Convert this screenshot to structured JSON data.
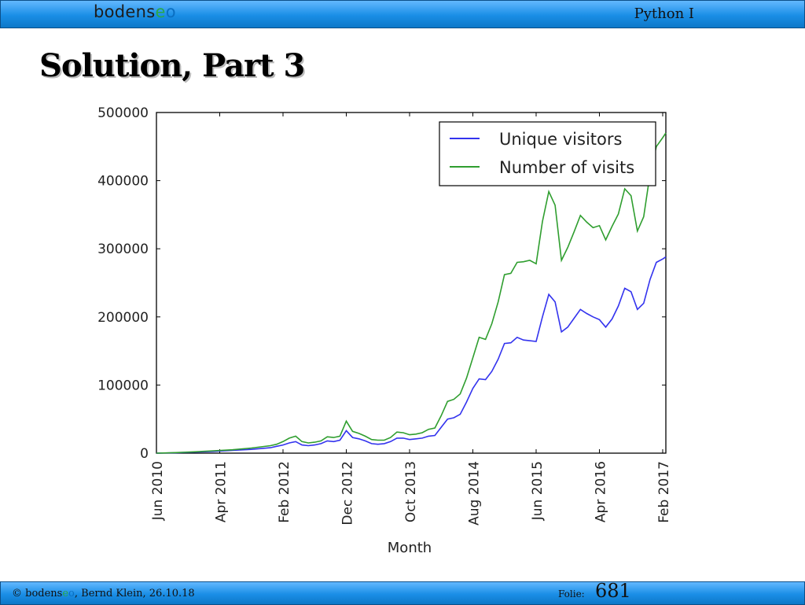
{
  "header": {
    "logo_parts": [
      "bodens",
      "e",
      "o"
    ],
    "course": "Python I"
  },
  "slide": {
    "title": "Solution, Part 3"
  },
  "footer": {
    "copyright": "© bodens",
    "logo_e": "e",
    "logo_o": "o",
    "author_date": ", Bernd Klein, 26.10.18",
    "folie_label": "Folie:",
    "folie_number": "681"
  },
  "colors": {
    "unique": "#3333ee",
    "visits": "#2f9e2f",
    "header_bar": "#1a8ee6"
  },
  "chart_data": {
    "type": "line",
    "xlabel": "Month",
    "ylabel": "",
    "ylim": [
      0,
      500000
    ],
    "yticks": [
      0,
      100000,
      200000,
      300000,
      400000,
      500000
    ],
    "ytick_labels": [
      "0",
      "100000",
      "200000",
      "300000",
      "400000",
      "500000"
    ],
    "xticks": [
      0,
      10,
      20,
      30,
      40,
      50,
      60,
      70,
      80
    ],
    "xtick_labels": [
      "Jun 2010",
      "Apr 2011",
      "Feb 2012",
      "Dec 2012",
      "Oct 2013",
      "Aug 2014",
      "Jun 2015",
      "Apr 2016",
      "Feb 2017"
    ],
    "xlim": [
      0,
      80.5
    ],
    "legend": "top-right",
    "series": [
      {
        "name": "Unique visitors",
        "color": "#3333ee",
        "x": [
          0,
          3,
          6,
          9,
          12,
          15,
          18,
          19,
          20,
          21,
          22,
          23,
          24,
          25,
          26,
          27,
          28,
          29,
          30,
          31,
          32,
          33,
          34,
          35,
          36,
          37,
          38,
          39,
          40,
          41,
          42,
          43,
          44,
          45,
          46,
          47,
          48,
          49,
          50,
          51,
          52,
          53,
          54,
          55,
          56,
          57,
          58,
          59,
          60,
          61,
          62,
          63,
          64,
          65,
          66,
          67,
          68,
          69,
          70,
          71,
          72,
          73,
          74,
          75,
          76,
          77,
          78,
          79,
          80,
          80.5
        ],
        "y": [
          0,
          500,
          1500,
          2500,
          4000,
          5500,
          8000,
          10000,
          12000,
          15000,
          17000,
          12000,
          11000,
          12000,
          14000,
          18000,
          17000,
          19000,
          33000,
          23000,
          21000,
          18000,
          14000,
          13000,
          14000,
          17000,
          22000,
          22000,
          20000,
          21000,
          22000,
          25000,
          26000,
          38000,
          50000,
          52000,
          57000,
          75000,
          95000,
          109000,
          108000,
          120000,
          138000,
          161000,
          162000,
          170000,
          166000,
          165000,
          164000,
          200000,
          233000,
          222000,
          178000,
          185000,
          198000,
          211000,
          205000,
          200000,
          196000,
          185000,
          197000,
          216000,
          242000,
          237000,
          211000,
          220000,
          255000,
          280000,
          285000,
          288000
        ]
      },
      {
        "name": "Number of visits",
        "color": "#2f9e2f",
        "x": [
          0,
          3,
          6,
          9,
          12,
          15,
          18,
          19,
          20,
          21,
          22,
          23,
          24,
          25,
          26,
          27,
          28,
          29,
          30,
          31,
          32,
          33,
          34,
          35,
          36,
          37,
          38,
          39,
          40,
          41,
          42,
          43,
          44,
          45,
          46,
          47,
          48,
          49,
          50,
          51,
          52,
          53,
          54,
          55,
          56,
          57,
          58,
          59,
          60,
          61,
          62,
          63,
          64,
          65,
          66,
          67,
          68,
          69,
          70,
          71,
          72,
          73,
          74,
          75,
          76,
          77,
          78,
          79,
          80,
          80.5
        ],
        "y": [
          0,
          800,
          2000,
          3500,
          5000,
          7500,
          11000,
          13000,
          17000,
          22000,
          25000,
          17000,
          15000,
          16000,
          18000,
          24000,
          23000,
          25000,
          47000,
          32000,
          29000,
          25000,
          20000,
          19000,
          19000,
          23000,
          31000,
          30000,
          27000,
          28000,
          30000,
          35000,
          37000,
          55000,
          76000,
          79000,
          87000,
          110000,
          140000,
          170000,
          167000,
          190000,
          222000,
          262000,
          264000,
          280000,
          281000,
          283000,
          278000,
          340000,
          384000,
          364000,
          283000,
          302000,
          325000,
          349000,
          339000,
          331000,
          334000,
          313000,
          333000,
          351000,
          388000,
          378000,
          326000,
          347000,
          410000,
          450000,
          463000,
          470000
        ]
      }
    ]
  }
}
